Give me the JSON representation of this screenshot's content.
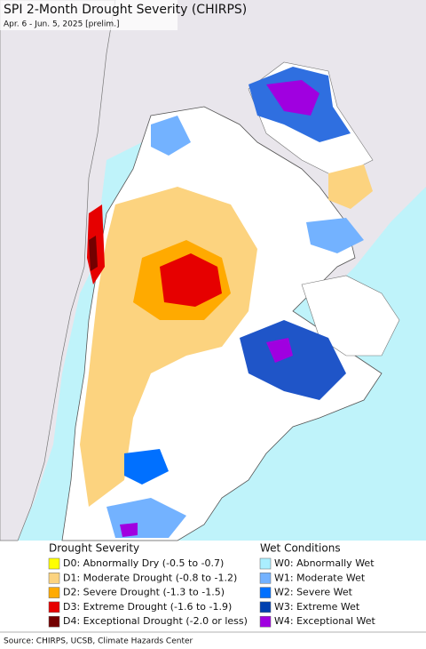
{
  "title": "SPI 2-Month Drought Severity (CHIRPS)",
  "subtitle": "Apr. 6 - Jun. 5, 2025 [prelim.]",
  "legend": {
    "drought": {
      "title": "Drought Severity",
      "items": [
        {
          "label": "D0: Abnormally Dry (-0.5 to -0.7)",
          "color": "#ffff00"
        },
        {
          "label": "D1: Moderate Drought (-0.8 to -1.2)",
          "color": "#fcd37f"
        },
        {
          "label": "D2: Severe Drought (-1.3 to -1.5)",
          "color": "#ffaa00"
        },
        {
          "label": "D3: Extreme Drought (-1.6 to -1.9)",
          "color": "#e60000"
        },
        {
          "label": "D4: Exceptional Drought (-2.0 or less)",
          "color": "#730000"
        }
      ]
    },
    "wet": {
      "title": "Wet Conditions",
      "items": [
        {
          "label": "W0: Abnormally Wet",
          "color": "#aaeeff"
        },
        {
          "label": "W1: Moderate Wet",
          "color": "#73b2ff"
        },
        {
          "label": "W2: Severe Wet",
          "color": "#0070ff"
        },
        {
          "label": "W3: Extreme Wet",
          "color": "#0040b0"
        },
        {
          "label": "W4: Exceptional Wet",
          "color": "#a000e0"
        }
      ]
    }
  },
  "source": "Source: CHIRPS, UCSB, Climate Hazards Center"
}
